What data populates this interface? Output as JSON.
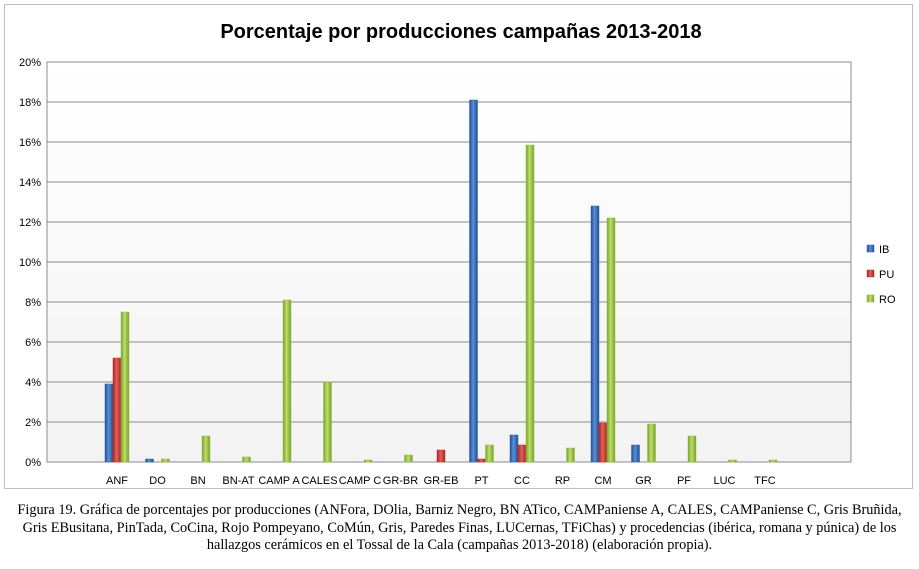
{
  "chart_data": {
    "type": "bar",
    "title": "Porcentaje por producciones campañas 2013-2018",
    "xlabel": "",
    "ylabel": "",
    "categories": [
      "ANF",
      "DO",
      "BN",
      "BN-AT",
      "CAMP A",
      "CALES",
      "CAMP C",
      "GR-BR",
      "GR-EB",
      "PT",
      "CC",
      "RP",
      "CM",
      "GR",
      "PF",
      "LUC",
      "TFC"
    ],
    "series": [
      {
        "name": "IB",
        "color": "#2e62ad",
        "values": [
          3.9,
          0.15,
          0,
          0,
          0,
          0,
          0,
          0,
          0,
          18.1,
          1.35,
          0,
          12.8,
          0.85,
          0,
          0,
          0
        ]
      },
      {
        "name": "PU",
        "color": "#c8302c",
        "values": [
          5.2,
          0,
          0,
          0,
          0,
          0,
          0,
          0,
          0.6,
          0.15,
          0.85,
          0,
          1.95,
          0,
          0,
          0,
          0
        ]
      },
      {
        "name": "RO",
        "color": "#92c03c",
        "values": [
          7.5,
          0.15,
          1.3,
          0.25,
          8.1,
          4.0,
          0.1,
          0.35,
          0,
          0.85,
          15.85,
          0.7,
          12.2,
          1.9,
          1.3,
          0.1,
          0.1
        ]
      }
    ],
    "ylim": [
      0,
      20
    ],
    "yticks": [
      "0%",
      "2%",
      "4%",
      "6%",
      "8%",
      "10%",
      "12%",
      "14%",
      "16%",
      "18%",
      "20%"
    ],
    "grid": true,
    "legend": "right"
  },
  "caption": "Figura 19. Gráfica de porcentajes por producciones (ANFora, DOlia, Barniz Negro, BN ATico, CAMPaniense A, CALES, CAMPaniense C, Gris Bruñida, Gris EBusitana, PinTada, CoCina, Rojo Pompeyano, CoMún, Gris, Paredes Finas, LUCernas, TFiChas) y procedencias (ibérica, romana y púnica) de los hallazgos cerámicos en el Tossal de la Cala (campañas 2013-2018) (elaboración propia)."
}
